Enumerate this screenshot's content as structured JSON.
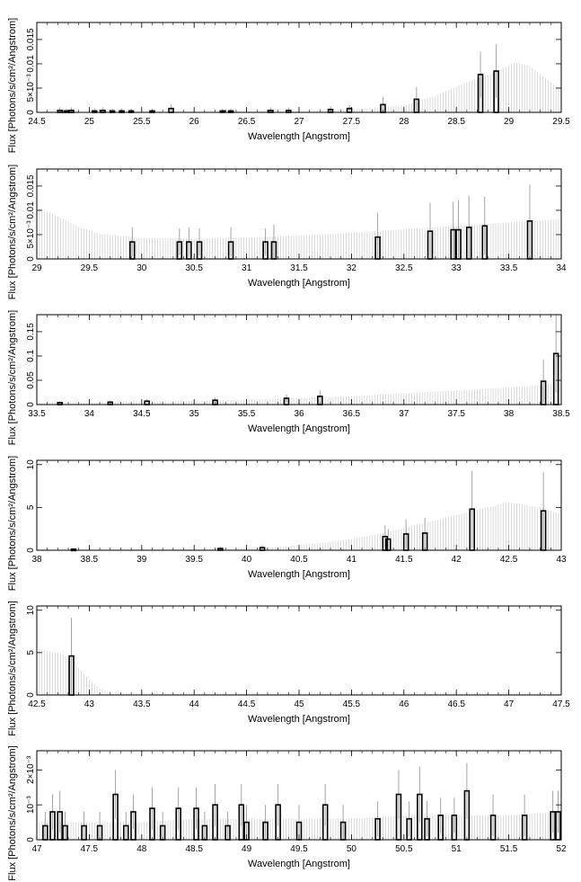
{
  "chart_data": [
    {
      "type": "bar",
      "xlabel": "Wavelength [Angstrom]",
      "ylabel": "Flux [Photons/s/cm²/Angstrom]",
      "xlim": [
        24.5,
        29.5
      ],
      "ylim": [
        0,
        0.0185
      ],
      "xticks": [
        {
          "v": 24.5,
          "t": "24.5"
        },
        {
          "v": 25,
          "t": "25"
        },
        {
          "v": 25.5,
          "t": "25.5"
        },
        {
          "v": 26,
          "t": "26"
        },
        {
          "v": 26.5,
          "t": "26.5"
        },
        {
          "v": 27,
          "t": "27"
        },
        {
          "v": 27.5,
          "t": "27.5"
        },
        {
          "v": 28,
          "t": "28"
        },
        {
          "v": 28.5,
          "t": "28.5"
        },
        {
          "v": 29,
          "t": "29"
        },
        {
          "v": 29.5,
          "t": "29.5"
        }
      ],
      "yticks": [
        {
          "v": 0,
          "t": "0"
        },
        {
          "v": 0.005,
          "t": "5×10⁻³"
        },
        {
          "v": 0.01,
          "t": "0.01"
        },
        {
          "v": 0.015,
          "t": "0.015"
        }
      ],
      "model": {
        "x": [
          24.5,
          27.0,
          27.5,
          28.0,
          28.3,
          28.6,
          28.9,
          29.05,
          29.2,
          29.5
        ],
        "y": [
          0.0001,
          0.0002,
          0.0006,
          0.0014,
          0.0034,
          0.0062,
          0.0085,
          0.0103,
          0.0096,
          0.0045
        ]
      },
      "points": [
        {
          "x": 24.72,
          "y": 0.0004,
          "err": 0.0006
        },
        {
          "x": 24.78,
          "y": 0.0003,
          "err": 0.0005
        },
        {
          "x": 24.83,
          "y": 0.0004,
          "err": 0.0006
        },
        {
          "x": 25.05,
          "y": 0.0003,
          "err": 0.0005
        },
        {
          "x": 25.13,
          "y": 0.0004,
          "err": 0.0006
        },
        {
          "x": 25.22,
          "y": 0.0003,
          "err": 0.0005
        },
        {
          "x": 25.31,
          "y": 0.0003,
          "err": 0.0005
        },
        {
          "x": 25.4,
          "y": 0.0003,
          "err": 0.0005
        },
        {
          "x": 25.6,
          "y": 0.0003,
          "err": 0.0005
        },
        {
          "x": 25.78,
          "y": 0.0008,
          "err": 0.0008
        },
        {
          "x": 26.27,
          "y": 0.0003,
          "err": 0.0005
        },
        {
          "x": 26.35,
          "y": 0.0003,
          "err": 0.0005
        },
        {
          "x": 26.73,
          "y": 0.0004,
          "err": 0.0006
        },
        {
          "x": 26.9,
          "y": 0.0004,
          "err": 0.0006
        },
        {
          "x": 27.3,
          "y": 0.0006,
          "err": 0.0007
        },
        {
          "x": 27.48,
          "y": 0.0008,
          "err": 0.0008
        },
        {
          "x": 27.8,
          "y": 0.0016,
          "err": 0.0016
        },
        {
          "x": 28.12,
          "y": 0.0027,
          "err": 0.0025
        },
        {
          "x": 28.73,
          "y": 0.0078,
          "err": 0.0047
        },
        {
          "x": 28.88,
          "y": 0.0085,
          "err": 0.0055
        }
      ]
    },
    {
      "type": "bar",
      "xlabel": "Wavelength [Angstrom]",
      "ylabel": "Flux [Photons/s/cm²/Angstrom]",
      "xlim": [
        29,
        34
      ],
      "ylim": [
        0,
        0.0185
      ],
      "xticks": [
        {
          "v": 29,
          "t": "29"
        },
        {
          "v": 29.5,
          "t": "29.5"
        },
        {
          "v": 30,
          "t": "30"
        },
        {
          "v": 30.5,
          "t": "30.5"
        },
        {
          "v": 31,
          "t": "31"
        },
        {
          "v": 31.5,
          "t": "31.5"
        },
        {
          "v": 32,
          "t": "32"
        },
        {
          "v": 32.5,
          "t": "32.5"
        },
        {
          "v": 33,
          "t": "33"
        },
        {
          "v": 33.5,
          "t": "33.5"
        },
        {
          "v": 34,
          "t": "34"
        }
      ],
      "yticks": [
        {
          "v": 0,
          "t": "0"
        },
        {
          "v": 0.005,
          "t": "5×10⁻³"
        },
        {
          "v": 0.01,
          "t": "0.01"
        },
        {
          "v": 0.015,
          "t": "0.015"
        }
      ],
      "model": {
        "x": [
          29.0,
          29.1,
          29.25,
          29.4,
          29.6,
          30.0,
          30.5,
          31.0,
          31.5,
          32.0,
          32.5,
          33.0,
          33.5,
          34.0
        ],
        "y": [
          0.0105,
          0.0098,
          0.0082,
          0.0066,
          0.0052,
          0.0043,
          0.0042,
          0.0044,
          0.0048,
          0.0054,
          0.0061,
          0.0068,
          0.0075,
          0.0082
        ]
      },
      "points": [
        {
          "x": 29.91,
          "y": 0.0035,
          "err": 0.003
        },
        {
          "x": 30.36,
          "y": 0.0035,
          "err": 0.0028
        },
        {
          "x": 30.45,
          "y": 0.0035,
          "err": 0.003
        },
        {
          "x": 30.55,
          "y": 0.0035,
          "err": 0.0028
        },
        {
          "x": 30.85,
          "y": 0.0035,
          "err": 0.003
        },
        {
          "x": 31.18,
          "y": 0.0035,
          "err": 0.0028
        },
        {
          "x": 31.26,
          "y": 0.0035,
          "err": 0.0035
        },
        {
          "x": 32.25,
          "y": 0.0045,
          "err": 0.005
        },
        {
          "x": 32.75,
          "y": 0.0057,
          "err": 0.0058
        },
        {
          "x": 32.97,
          "y": 0.006,
          "err": 0.0058
        },
        {
          "x": 33.02,
          "y": 0.006,
          "err": 0.006
        },
        {
          "x": 33.12,
          "y": 0.0065,
          "err": 0.0065
        },
        {
          "x": 33.27,
          "y": 0.0068,
          "err": 0.006
        },
        {
          "x": 33.7,
          "y": 0.0078,
          "err": 0.0075
        }
      ]
    },
    {
      "type": "bar",
      "xlabel": "Wavelength [Angstrom]",
      "ylabel": "Flux [Photons/s/cm²/Angstrom]",
      "xlim": [
        33.5,
        38.5
      ],
      "ylim": [
        0,
        0.185
      ],
      "xticks": [
        {
          "v": 33.5,
          "t": "33.5"
        },
        {
          "v": 34,
          "t": "34"
        },
        {
          "v": 34.5,
          "t": "34.5"
        },
        {
          "v": 35,
          "t": "35"
        },
        {
          "v": 35.5,
          "t": "35.5"
        },
        {
          "v": 36,
          "t": "36"
        },
        {
          "v": 36.5,
          "t": "36.5"
        },
        {
          "v": 37,
          "t": "37"
        },
        {
          "v": 37.5,
          "t": "37.5"
        },
        {
          "v": 38,
          "t": "38"
        },
        {
          "v": 38.5,
          "t": "38.5"
        }
      ],
      "yticks": [
        {
          "v": 0,
          "t": "0"
        },
        {
          "v": 0.05,
          "t": "0.05"
        },
        {
          "v": 0.1,
          "t": "0.1"
        },
        {
          "v": 0.15,
          "t": "0.15"
        }
      ],
      "model": {
        "x": [
          33.5,
          34.5,
          35.5,
          36.5,
          37.0,
          37.5,
          38.0,
          38.3,
          38.5
        ],
        "y": [
          0.004,
          0.006,
          0.01,
          0.017,
          0.023,
          0.029,
          0.035,
          0.04,
          0.044
        ]
      },
      "points": [
        {
          "x": 33.72,
          "y": 0.004,
          "err": 0.003
        },
        {
          "x": 34.2,
          "y": 0.005,
          "err": 0.003
        },
        {
          "x": 34.55,
          "y": 0.007,
          "err": 0.004
        },
        {
          "x": 35.2,
          "y": 0.009,
          "err": 0.005
        },
        {
          "x": 35.88,
          "y": 0.013,
          "err": 0.008
        },
        {
          "x": 36.2,
          "y": 0.017,
          "err": 0.012
        },
        {
          "x": 38.33,
          "y": 0.048,
          "err": 0.045
        },
        {
          "x": 38.45,
          "y": 0.105,
          "err": 0.08
        }
      ]
    },
    {
      "type": "bar",
      "xlabel": "Wavelength [Angstrom]",
      "ylabel": "Flux [Photons/s/cm²/Angstrom]",
      "xlim": [
        38,
        43
      ],
      "ylim": [
        0,
        10.5
      ],
      "xticks": [
        {
          "v": 38,
          "t": "38"
        },
        {
          "v": 38.5,
          "t": "38.5"
        },
        {
          "v": 39,
          "t": "39"
        },
        {
          "v": 39.5,
          "t": "39.5"
        },
        {
          "v": 40,
          "t": "40"
        },
        {
          "v": 40.5,
          "t": "40.5"
        },
        {
          "v": 41,
          "t": "41"
        },
        {
          "v": 41.5,
          "t": "41.5"
        },
        {
          "v": 42,
          "t": "42"
        },
        {
          "v": 42.5,
          "t": "42.5"
        },
        {
          "v": 43,
          "t": "43"
        }
      ],
      "yticks": [
        {
          "v": 0,
          "t": "0"
        },
        {
          "v": 5,
          "t": "5"
        },
        {
          "v": 10,
          "t": "10"
        }
      ],
      "model": {
        "x": [
          38.0,
          39.5,
          40.2,
          40.6,
          41.0,
          41.3,
          41.6,
          41.9,
          42.2,
          42.5,
          42.8,
          43.0
        ],
        "y": [
          0.05,
          0.1,
          0.3,
          0.7,
          1.3,
          2.0,
          2.9,
          3.8,
          4.7,
          5.6,
          5.0,
          4.2
        ]
      },
      "points": [
        {
          "x": 38.35,
          "y": 0.12,
          "err": 0.15
        },
        {
          "x": 39.75,
          "y": 0.2,
          "err": 0.2
        },
        {
          "x": 40.15,
          "y": 0.3,
          "err": 0.3
        },
        {
          "x": 41.32,
          "y": 1.6,
          "err": 1.3
        },
        {
          "x": 41.35,
          "y": 1.3,
          "err": 1.2
        },
        {
          "x": 41.52,
          "y": 1.9,
          "err": 1.7
        },
        {
          "x": 41.7,
          "y": 2.0,
          "err": 1.8
        },
        {
          "x": 42.15,
          "y": 4.8,
          "err": 4.5
        },
        {
          "x": 42.83,
          "y": 4.6,
          "err": 4.5
        }
      ]
    },
    {
      "type": "bar",
      "xlabel": "Wavelength [Angstrom]",
      "ylabel": "Flux [Photons/s/cm²/Angstrom]",
      "xlim": [
        42.5,
        47.5
      ],
      "ylim": [
        0,
        10.5
      ],
      "xticks": [
        {
          "v": 42.5,
          "t": "42.5"
        },
        {
          "v": 43,
          "t": "43"
        },
        {
          "v": 43.5,
          "t": "43.5"
        },
        {
          "v": 44,
          "t": "44"
        },
        {
          "v": 44.5,
          "t": "44.5"
        },
        {
          "v": 45,
          "t": "45"
        },
        {
          "v": 45.5,
          "t": "45.5"
        },
        {
          "v": 46,
          "t": "46"
        },
        {
          "v": 46.5,
          "t": "46.5"
        },
        {
          "v": 47,
          "t": "47"
        },
        {
          "v": 47.5,
          "t": "47.5"
        }
      ],
      "yticks": [
        {
          "v": 0,
          "t": "0"
        },
        {
          "v": 5,
          "t": "5"
        },
        {
          "v": 10,
          "t": "10"
        }
      ],
      "model": {
        "x": [
          42.5,
          42.6,
          42.75,
          42.9,
          43.0,
          43.1,
          43.2
        ],
        "y": [
          5.5,
          5.2,
          4.8,
          3.2,
          1.8,
          0.8,
          0.2
        ]
      },
      "points": [
        {
          "x": 42.83,
          "y": 4.6,
          "err": 4.5
        }
      ]
    },
    {
      "type": "bar",
      "xlabel": "Wavelength [Angstrom]",
      "ylabel": "Flux [Photons/s/cm²/Angstrom]",
      "xlim": [
        47,
        52
      ],
      "ylim": [
        0,
        0.00255
      ],
      "xticks": [
        {
          "v": 47,
          "t": "47"
        },
        {
          "v": 47.5,
          "t": "47.5"
        },
        {
          "v": 48,
          "t": "48"
        },
        {
          "v": 48.5,
          "t": "48.5"
        },
        {
          "v": 49,
          "t": "49"
        },
        {
          "v": 49.5,
          "t": "49.5"
        },
        {
          "v": 50,
          "t": "50"
        },
        {
          "v": 50.5,
          "t": "50.5"
        },
        {
          "v": 51,
          "t": "51"
        },
        {
          "v": 51.5,
          "t": "51.5"
        },
        {
          "v": 52,
          "t": "52"
        }
      ],
      "yticks": [
        {
          "v": 0,
          "t": "0"
        },
        {
          "v": 0.001,
          "t": "10⁻³"
        },
        {
          "v": 0.002,
          "t": "2×10⁻³"
        }
      ],
      "model": {
        "x": [
          47.0,
          47.5,
          48.0,
          48.5,
          49.0,
          49.5,
          50.0,
          50.5,
          51.0,
          51.5,
          52.0
        ],
        "y": [
          0.0005,
          0.0005,
          0.0005,
          0.0006,
          0.0006,
          0.0006,
          0.0006,
          0.0007,
          0.0007,
          0.0007,
          0.0008
        ]
      },
      "points": [
        {
          "x": 47.08,
          "y": 0.0004,
          "err": 0.0004
        },
        {
          "x": 47.15,
          "y": 0.0008,
          "err": 0.0005
        },
        {
          "x": 47.22,
          "y": 0.0008,
          "err": 0.0006
        },
        {
          "x": 47.27,
          "y": 0.0004,
          "err": 0.0004
        },
        {
          "x": 47.45,
          "y": 0.0004,
          "err": 0.0004
        },
        {
          "x": 47.6,
          "y": 0.0004,
          "err": 0.0004
        },
        {
          "x": 47.75,
          "y": 0.0013,
          "err": 0.0007
        },
        {
          "x": 47.85,
          "y": 0.0004,
          "err": 0.0004
        },
        {
          "x": 47.92,
          "y": 0.0008,
          "err": 0.0005
        },
        {
          "x": 48.1,
          "y": 0.0009,
          "err": 0.0006
        },
        {
          "x": 48.2,
          "y": 0.0004,
          "err": 0.0004
        },
        {
          "x": 48.35,
          "y": 0.0009,
          "err": 0.0006
        },
        {
          "x": 48.52,
          "y": 0.0009,
          "err": 0.0006
        },
        {
          "x": 48.6,
          "y": 0.0004,
          "err": 0.0004
        },
        {
          "x": 48.7,
          "y": 0.001,
          "err": 0.0006
        },
        {
          "x": 48.82,
          "y": 0.0004,
          "err": 0.0004
        },
        {
          "x": 48.95,
          "y": 0.001,
          "err": 0.0006
        },
        {
          "x": 49.0,
          "y": 0.0005,
          "err": 0.0005
        },
        {
          "x": 49.18,
          "y": 0.0005,
          "err": 0.0005
        },
        {
          "x": 49.3,
          "y": 0.001,
          "err": 0.0006
        },
        {
          "x": 49.5,
          "y": 0.0005,
          "err": 0.0005
        },
        {
          "x": 49.75,
          "y": 0.001,
          "err": 0.0006
        },
        {
          "x": 49.92,
          "y": 0.0005,
          "err": 0.0005
        },
        {
          "x": 50.25,
          "y": 0.0006,
          "err": 0.0005
        },
        {
          "x": 50.45,
          "y": 0.0013,
          "err": 0.0007
        },
        {
          "x": 50.55,
          "y": 0.0006,
          "err": 0.0005
        },
        {
          "x": 50.65,
          "y": 0.0013,
          "err": 0.0008
        },
        {
          "x": 50.72,
          "y": 0.0006,
          "err": 0.0005
        },
        {
          "x": 50.85,
          "y": 0.0007,
          "err": 0.0005
        },
        {
          "x": 50.98,
          "y": 0.0007,
          "err": 0.0005
        },
        {
          "x": 51.1,
          "y": 0.0014,
          "err": 0.0008
        },
        {
          "x": 51.35,
          "y": 0.0007,
          "err": 0.0006
        },
        {
          "x": 51.65,
          "y": 0.0007,
          "err": 0.0006
        },
        {
          "x": 51.92,
          "y": 0.0008,
          "err": 0.0006
        },
        {
          "x": 51.97,
          "y": 0.0008,
          "err": 0.0006
        }
      ]
    }
  ]
}
